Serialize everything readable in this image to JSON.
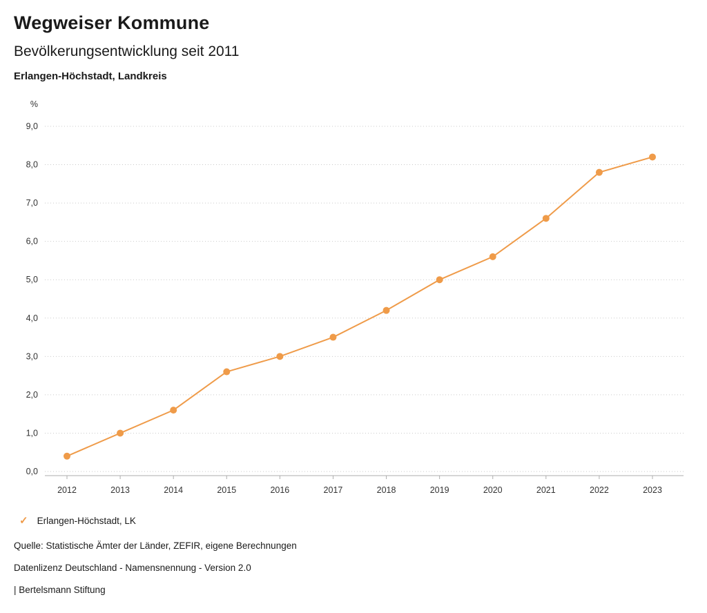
{
  "header": {
    "title": "Wegweiser Kommune",
    "subtitle": "Bevölkerungsentwicklung seit 2011",
    "region": "Erlangen-Höchstadt, Landkreis"
  },
  "legend": {
    "check_icon": "✓",
    "label": "Erlangen-Höchstadt, LK"
  },
  "footer": {
    "source": "Quelle: Statistische Ämter der Länder, ZEFIR, eigene Berechnungen",
    "license": "Datenlizenz Deutschland - Namensnennung - Version 2.0",
    "attribution": "| Bertelsmann Stiftung"
  },
  "colors": {
    "accent": "#EF9B49",
    "grid": "#c9c9c9",
    "axis": "#adadad",
    "tick_text": "#333333"
  },
  "chart_data": {
    "type": "line",
    "title": "Bevölkerungsentwicklung seit 2011",
    "subtitle": "Erlangen-Höchstadt, Landkreis",
    "x": [
      "2012",
      "2013",
      "2014",
      "2015",
      "2016",
      "2017",
      "2018",
      "2019",
      "2020",
      "2021",
      "2022",
      "2023"
    ],
    "series": [
      {
        "name": "Erlangen-Höchstadt, LK",
        "values": [
          0.4,
          1.0,
          1.6,
          2.6,
          3.0,
          3.5,
          4.2,
          5.0,
          5.6,
          6.6,
          7.8,
          8.2
        ]
      }
    ],
    "xlabel": "",
    "ylabel": "%",
    "ylim": [
      0,
      9
    ],
    "y_tick_step": 1,
    "y_tick_labels": [
      "0,0",
      "1,0",
      "2,0",
      "3,0",
      "4,0",
      "5,0",
      "6,0",
      "7,0",
      "8,0",
      "9,0"
    ],
    "grid": "dotted-horizontal",
    "legend_position": "bottom-left",
    "marker": "circle"
  }
}
